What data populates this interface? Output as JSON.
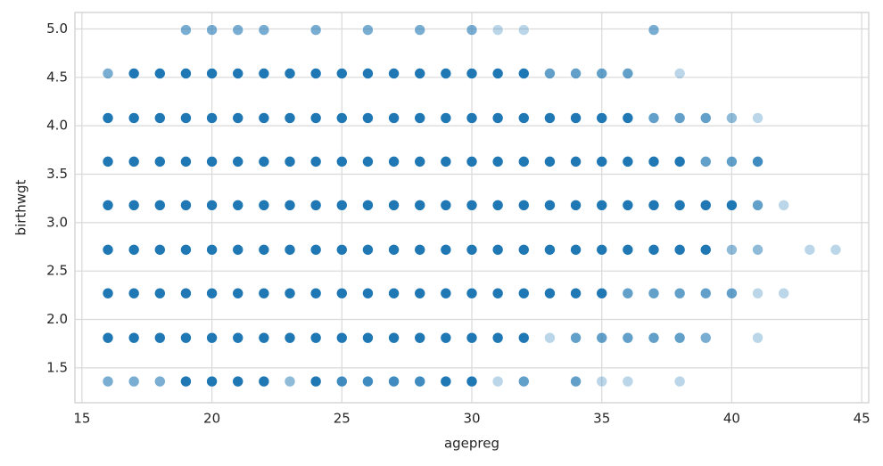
{
  "chart_data": {
    "type": "scatter",
    "x_label": "agepreg",
    "y_label": "birthwgt",
    "xlim": [
      14.73,
      45.27
    ],
    "ylim": [
      1.14,
      5.17
    ],
    "xticks": [
      15,
      20,
      25,
      30,
      35,
      40,
      45
    ],
    "yticks": [
      1.5,
      {
        "value": 2.0,
        "label": "2.0"
      },
      2.5,
      {
        "value": 3.0,
        "label": "3.0"
      },
      3.5,
      {
        "value": 4.0,
        "label": "4.0"
      },
      4.5,
      {
        "value": 5.0,
        "label": "5.0"
      }
    ],
    "grid": true,
    "series": [
      {
        "color": "#1f77b4",
        "x": [
          19,
          20,
          21,
          22,
          24,
          26,
          28,
          30,
          31,
          32,
          37,
          16,
          17,
          18,
          19,
          20,
          21,
          22,
          23,
          24,
          25,
          26,
          27,
          28,
          29,
          30,
          31,
          32,
          33,
          34,
          35,
          36,
          38,
          16,
          17,
          18,
          19,
          20,
          21,
          22,
          23,
          24,
          25,
          26,
          27,
          28,
          29,
          30,
          31,
          32,
          33,
          34,
          35,
          36,
          37,
          38,
          39,
          40,
          41,
          16,
          17,
          18,
          19,
          20,
          21,
          22,
          23,
          24,
          25,
          26,
          27,
          28,
          29,
          30,
          31,
          32,
          33,
          34,
          35,
          36,
          37,
          38,
          39,
          40,
          41,
          16,
          17,
          18,
          19,
          20,
          21,
          22,
          23,
          24,
          25,
          26,
          27,
          28,
          29,
          30,
          31,
          32,
          33,
          34,
          35,
          36,
          37,
          38,
          39,
          40,
          41,
          42,
          16,
          17,
          18,
          19,
          20,
          21,
          22,
          23,
          24,
          25,
          26,
          27,
          28,
          29,
          30,
          31,
          32,
          33,
          34,
          35,
          36,
          37,
          38,
          39,
          40,
          41,
          43,
          44,
          16,
          17,
          18,
          19,
          20,
          21,
          22,
          23,
          24,
          25,
          26,
          27,
          28,
          29,
          30,
          31,
          32,
          33,
          34,
          35,
          36,
          37,
          38,
          39,
          40,
          41,
          42,
          16,
          17,
          18,
          19,
          20,
          21,
          22,
          23,
          24,
          25,
          26,
          27,
          28,
          29,
          30,
          31,
          32,
          33,
          34,
          35,
          36,
          37,
          38,
          39,
          41,
          16,
          17,
          18,
          19,
          20,
          21,
          22,
          23,
          24,
          25,
          26,
          27,
          28,
          29,
          30,
          31,
          32,
          34,
          35,
          36,
          38
        ],
        "y": [
          4.99,
          4.99,
          4.99,
          4.99,
          4.99,
          4.99,
          4.99,
          4.99,
          4.99,
          4.99,
          4.99,
          4.54,
          4.54,
          4.54,
          4.54,
          4.54,
          4.54,
          4.54,
          4.54,
          4.54,
          4.54,
          4.54,
          4.54,
          4.54,
          4.54,
          4.54,
          4.54,
          4.54,
          4.54,
          4.54,
          4.54,
          4.54,
          4.54,
          4.08,
          4.08,
          4.08,
          4.08,
          4.08,
          4.08,
          4.08,
          4.08,
          4.08,
          4.08,
          4.08,
          4.08,
          4.08,
          4.08,
          4.08,
          4.08,
          4.08,
          4.08,
          4.08,
          4.08,
          4.08,
          4.08,
          4.08,
          4.08,
          4.08,
          4.08,
          3.63,
          3.63,
          3.63,
          3.63,
          3.63,
          3.63,
          3.63,
          3.63,
          3.63,
          3.63,
          3.63,
          3.63,
          3.63,
          3.63,
          3.63,
          3.63,
          3.63,
          3.63,
          3.63,
          3.63,
          3.63,
          3.63,
          3.63,
          3.63,
          3.63,
          3.63,
          3.18,
          3.18,
          3.18,
          3.18,
          3.18,
          3.18,
          3.18,
          3.18,
          3.18,
          3.18,
          3.18,
          3.18,
          3.18,
          3.18,
          3.18,
          3.18,
          3.18,
          3.18,
          3.18,
          3.18,
          3.18,
          3.18,
          3.18,
          3.18,
          3.18,
          3.18,
          3.18,
          2.72,
          2.72,
          2.72,
          2.72,
          2.72,
          2.72,
          2.72,
          2.72,
          2.72,
          2.72,
          2.72,
          2.72,
          2.72,
          2.72,
          2.72,
          2.72,
          2.72,
          2.72,
          2.72,
          2.72,
          2.72,
          2.72,
          2.72,
          2.72,
          2.72,
          2.72,
          2.72,
          2.72,
          2.27,
          2.27,
          2.27,
          2.27,
          2.27,
          2.27,
          2.27,
          2.27,
          2.27,
          2.27,
          2.27,
          2.27,
          2.27,
          2.27,
          2.27,
          2.27,
          2.27,
          2.27,
          2.27,
          2.27,
          2.27,
          2.27,
          2.27,
          2.27,
          2.27,
          2.27,
          2.27,
          1.81,
          1.81,
          1.81,
          1.81,
          1.81,
          1.81,
          1.81,
          1.81,
          1.81,
          1.81,
          1.81,
          1.81,
          1.81,
          1.81,
          1.81,
          1.81,
          1.81,
          1.81,
          1.81,
          1.81,
          1.81,
          1.81,
          1.81,
          1.81,
          1.81,
          1.36,
          1.36,
          1.36,
          1.36,
          1.36,
          1.36,
          1.36,
          1.36,
          1.36,
          1.36,
          1.36,
          1.36,
          1.36,
          1.36,
          1.36,
          1.36,
          1.36,
          1.36,
          1.36,
          1.36,
          1.36
        ],
        "alpha": [
          0.6,
          0.6,
          0.6,
          0.6,
          0.6,
          0.6,
          0.6,
          0.6,
          0.3,
          0.3,
          0.6,
          0.6,
          1,
          1,
          1,
          1,
          1,
          1,
          1,
          1,
          1,
          1,
          1,
          1,
          1,
          1,
          1,
          1,
          0.7,
          0.7,
          0.7,
          0.7,
          0.3,
          1,
          1,
          1,
          1,
          1,
          1,
          1,
          1,
          1,
          1,
          1,
          1,
          1,
          1,
          1,
          1,
          1,
          1,
          1,
          1,
          1,
          0.7,
          0.7,
          0.7,
          0.5,
          0.3,
          1,
          1,
          1,
          1,
          1,
          1,
          1,
          1,
          1,
          1,
          1,
          1,
          1,
          1,
          1,
          1,
          1,
          1,
          1,
          1,
          1,
          1,
          1,
          0.7,
          0.7,
          0.85,
          1,
          1,
          1,
          1,
          1,
          1,
          1,
          1,
          1,
          1,
          1,
          1,
          1,
          1,
          1,
          1,
          1,
          1,
          1,
          1,
          1,
          1,
          1,
          1,
          1,
          0.7,
          0.3,
          1,
          1,
          1,
          1,
          1,
          1,
          1,
          1,
          1,
          1,
          1,
          1,
          1,
          1,
          1,
          1,
          1,
          1,
          1,
          1,
          1,
          1,
          1,
          1,
          0.5,
          0.5,
          0.3,
          0.3,
          1,
          1,
          1,
          1,
          1,
          1,
          1,
          1,
          1,
          1,
          1,
          1,
          1,
          1,
          1,
          1,
          1,
          1,
          1,
          1,
          0.7,
          0.7,
          0.7,
          0.7,
          0.7,
          0.3,
          0.3,
          1,
          1,
          1,
          1,
          1,
          1,
          1,
          1,
          1,
          1,
          1,
          1,
          1,
          1,
          1,
          1,
          1,
          0.3,
          0.7,
          0.7,
          0.7,
          0.7,
          0.7,
          0.6,
          0.3,
          0.6,
          0.6,
          0.6,
          1,
          1,
          1,
          1,
          0.5,
          1,
          0.85,
          0.85,
          0.85,
          0.85,
          1,
          1,
          0.3,
          0.7,
          0.7,
          0.3,
          0.3,
          0.3
        ]
      }
    ]
  }
}
